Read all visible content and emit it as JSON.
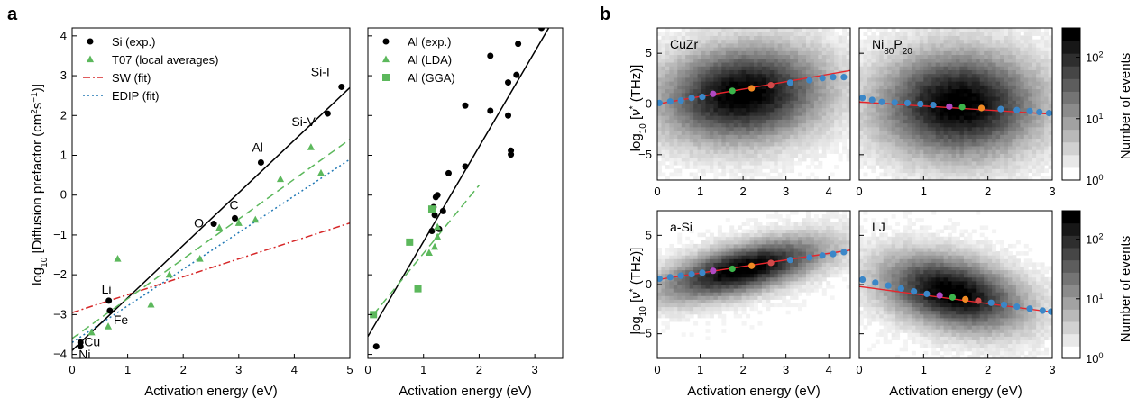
{
  "panel_letters": {
    "a": "a",
    "b": "b"
  },
  "chart_data": [
    {
      "type": "scatter",
      "panel": "a-left",
      "xlabel": "Activation energy (eV)",
      "ylabel": "log10 [Diffusion prefactor (cm2 s-1)]",
      "xlim": [
        0,
        5
      ],
      "ylim": [
        -4.1,
        4.2
      ],
      "xticks": [
        0,
        1,
        2,
        3,
        4,
        5
      ],
      "yticks": [
        -4,
        -3,
        -2,
        -1,
        0,
        1,
        2,
        3,
        4
      ],
      "legend_position": "top-left",
      "series": [
        {
          "name": "Si (exp.)",
          "kind": "points",
          "marker": "circle",
          "color": "#000000",
          "points": [
            {
              "x": 0.15,
              "y": -3.7,
              "label": "Cu"
            },
            {
              "x": 0.15,
              "y": -3.8,
              "label": "Ni"
            },
            {
              "x": 0.66,
              "y": -2.65,
              "label": "Li"
            },
            {
              "x": 0.68,
              "y": -2.9,
              "label": "Fe"
            },
            {
              "x": 2.55,
              "y": -0.72,
              "label": "O"
            },
            {
              "x": 2.93,
              "y": -0.58,
              "label": "C"
            },
            {
              "x": 3.4,
              "y": 0.82,
              "label": "Al"
            },
            {
              "x": 4.6,
              "y": 2.05,
              "label": "Si-V"
            },
            {
              "x": 4.85,
              "y": 2.72,
              "label": "Si-I"
            }
          ]
        },
        {
          "name": "T07 (local averages)",
          "kind": "points",
          "marker": "triangle",
          "color": "#5cb85c",
          "points": [
            {
              "x": 0.35,
              "y": -3.45
            },
            {
              "x": 0.65,
              "y": -3.3
            },
            {
              "x": 0.82,
              "y": -1.6
            },
            {
              "x": 1.42,
              "y": -2.75
            },
            {
              "x": 1.75,
              "y": -2.0
            },
            {
              "x": 2.3,
              "y": -1.6
            },
            {
              "x": 2.65,
              "y": -0.82
            },
            {
              "x": 3.0,
              "y": -0.7
            },
            {
              "x": 3.3,
              "y": -0.62
            },
            {
              "x": 3.75,
              "y": 0.4
            },
            {
              "x": 4.3,
              "y": 1.2
            },
            {
              "x": 4.48,
              "y": 0.55
            }
          ]
        },
        {
          "name": "SW (fit)",
          "kind": "line",
          "style": "dashdot",
          "color": "#d62728",
          "line": [
            [
              0,
              -2.95
            ],
            [
              5,
              -0.7
            ]
          ]
        },
        {
          "name": "EDIP (fit)",
          "kind": "line",
          "style": "dotted",
          "color": "#1f77b4",
          "line": [
            [
              0,
              -3.7
            ],
            [
              5,
              0.9
            ]
          ]
        },
        {
          "name": "",
          "kind": "line",
          "style": "solid",
          "color": "#000000",
          "line": [
            [
              0,
              -3.9
            ],
            [
              5,
              2.7
            ]
          ]
        },
        {
          "name": "",
          "kind": "line",
          "style": "dashed",
          "color": "#5cb85c",
          "line": [
            [
              0,
              -3.6
            ],
            [
              5,
              1.4
            ]
          ]
        }
      ]
    },
    {
      "type": "scatter",
      "panel": "a-right",
      "xlabel": "Activation energy (eV)",
      "xlim": [
        0,
        3.5
      ],
      "ylim": [
        -4.1,
        4.2
      ],
      "xticks": [
        0,
        1,
        2,
        3
      ],
      "yticks": [
        -4,
        -3,
        -2,
        -1,
        0,
        1,
        2,
        3,
        4
      ],
      "legend_position": "top-left",
      "series": [
        {
          "name": "Al (exp.)",
          "kind": "points",
          "marker": "circle",
          "color": "#000000",
          "points": [
            {
              "x": 0.15,
              "y": -3.8
            },
            {
              "x": 1.15,
              "y": -0.9
            },
            {
              "x": 1.18,
              "y": -0.3
            },
            {
              "x": 1.2,
              "y": -0.5
            },
            {
              "x": 1.22,
              "y": -0.05
            },
            {
              "x": 1.25,
              "y": 0.0
            },
            {
              "x": 1.28,
              "y": -0.85
            },
            {
              "x": 1.35,
              "y": -0.4
            },
            {
              "x": 1.45,
              "y": 0.55
            },
            {
              "x": 1.75,
              "y": 0.72
            },
            {
              "x": 1.75,
              "y": 2.25
            },
            {
              "x": 2.2,
              "y": 2.12
            },
            {
              "x": 2.2,
              "y": 3.5
            },
            {
              "x": 2.52,
              "y": 2.0
            },
            {
              "x": 2.52,
              "y": 2.83
            },
            {
              "x": 2.57,
              "y": 1.02
            },
            {
              "x": 2.57,
              "y": 1.12
            },
            {
              "x": 2.67,
              "y": 3.02
            },
            {
              "x": 2.7,
              "y": 3.8
            },
            {
              "x": 3.12,
              "y": 4.2
            }
          ]
        },
        {
          "name": "Al (LDA)",
          "kind": "points",
          "marker": "triangle",
          "color": "#5cb85c",
          "points": [
            {
              "x": 1.1,
              "y": -1.45
            },
            {
              "x": 1.2,
              "y": -1.3
            },
            {
              "x": 1.25,
              "y": -0.8
            },
            {
              "x": 1.25,
              "y": -1.05
            }
          ]
        },
        {
          "name": "Al (GGA)",
          "kind": "points",
          "marker": "square",
          "color": "#5cb85c",
          "points": [
            {
              "x": 0.1,
              "y": -3.0
            },
            {
              "x": 0.75,
              "y": -1.18
            },
            {
              "x": 0.9,
              "y": -2.35
            },
            {
              "x": 1.15,
              "y": -0.35
            }
          ]
        },
        {
          "name": "",
          "kind": "line",
          "style": "solid",
          "color": "#000000",
          "line": [
            [
              0,
              -3.55
            ],
            [
              3.25,
              4.2
            ]
          ]
        },
        {
          "name": "",
          "kind": "line",
          "style": "dashed",
          "color": "#5cb85c",
          "line": [
            [
              0.1,
              -3.0
            ],
            [
              2.0,
              0.25
            ]
          ]
        }
      ]
    },
    {
      "type": "heatmap",
      "panel": "b-CuZr",
      "title": "CuZr",
      "xlabel": "",
      "ylabel": "log10 [ν* (THz)]",
      "xlim": [
        0,
        4.5
      ],
      "ylim": [
        -7.5,
        7.5
      ],
      "xticks": [
        0,
        1,
        2,
        3,
        4
      ],
      "yticks": [
        -5,
        0,
        5
      ],
      "cloud": {
        "cx": 2.0,
        "cy": 1.0,
        "sx": 1.3,
        "sy": 3.2,
        "rho": 0.12
      },
      "fit_line": [
        [
          0,
          0.0
        ],
        [
          4.5,
          3.3
        ]
      ],
      "binned_points": [
        {
          "x": 0.05,
          "y": 0.1,
          "color": "#3b87c8"
        },
        {
          "x": 0.3,
          "y": 0.25,
          "color": "#3b87c8"
        },
        {
          "x": 0.55,
          "y": 0.35,
          "color": "#3b87c8"
        },
        {
          "x": 0.8,
          "y": 0.6,
          "color": "#3b87c8"
        },
        {
          "x": 1.05,
          "y": 0.7,
          "color": "#3b87c8"
        },
        {
          "x": 1.3,
          "y": 1.0,
          "color": "#b04ac4"
        },
        {
          "x": 1.75,
          "y": 1.3,
          "color": "#3cb44b"
        },
        {
          "x": 2.2,
          "y": 1.55,
          "color": "#f08a24"
        },
        {
          "x": 2.65,
          "y": 1.85,
          "color": "#d14a4a"
        },
        {
          "x": 3.1,
          "y": 2.1,
          "color": "#3b87c8"
        },
        {
          "x": 3.55,
          "y": 2.35,
          "color": "#3b87c8"
        },
        {
          "x": 3.85,
          "y": 2.55,
          "color": "#3b87c8"
        },
        {
          "x": 4.1,
          "y": 2.65,
          "color": "#3b87c8"
        },
        {
          "x": 4.35,
          "y": 2.65,
          "color": "#3b87c8"
        }
      ]
    },
    {
      "type": "heatmap",
      "panel": "b-NiP",
      "title": "Ni80P20",
      "xlim": [
        0,
        3
      ],
      "ylim": [
        -7.5,
        7.5
      ],
      "xticks": [
        0,
        1,
        2,
        3
      ],
      "yticks": [
        -5,
        0,
        5
      ],
      "cloud": {
        "cx": 1.55,
        "cy": 0.0,
        "sx": 0.85,
        "sy": 3.5,
        "rho": 0.0
      },
      "fit_line": [
        [
          0,
          0.2
        ],
        [
          3,
          -1.0
        ]
      ],
      "binned_points": [
        {
          "x": 0.05,
          "y": 0.6,
          "color": "#3b87c8"
        },
        {
          "x": 0.2,
          "y": 0.4,
          "color": "#3b87c8"
        },
        {
          "x": 0.35,
          "y": 0.2,
          "color": "#3b87c8"
        },
        {
          "x": 0.55,
          "y": 0.15,
          "color": "#3b87c8"
        },
        {
          "x": 0.75,
          "y": 0.1,
          "color": "#3b87c8"
        },
        {
          "x": 0.95,
          "y": 0.0,
          "color": "#3b87c8"
        },
        {
          "x": 1.15,
          "y": -0.1,
          "color": "#3b87c8"
        },
        {
          "x": 1.4,
          "y": -0.25,
          "color": "#b04ac4"
        },
        {
          "x": 1.6,
          "y": -0.3,
          "color": "#3cb44b"
        },
        {
          "x": 1.9,
          "y": -0.4,
          "color": "#f08a24"
        },
        {
          "x": 2.2,
          "y": -0.5,
          "color": "#3b87c8"
        },
        {
          "x": 2.45,
          "y": -0.6,
          "color": "#3b87c8"
        },
        {
          "x": 2.65,
          "y": -0.7,
          "color": "#3b87c8"
        },
        {
          "x": 2.8,
          "y": -0.8,
          "color": "#3b87c8"
        },
        {
          "x": 2.95,
          "y": -0.9,
          "color": "#3b87c8"
        }
      ]
    },
    {
      "type": "heatmap",
      "panel": "b-aSi",
      "title": "a-Si",
      "xlabel": "Activation energy (eV)",
      "ylabel": "log10 [ν* (THz)]",
      "xlim": [
        0,
        4.5
      ],
      "ylim": [
        -7.5,
        7.5
      ],
      "xticks": [
        0,
        1,
        2,
        3,
        4
      ],
      "yticks": [
        -5,
        0,
        5
      ],
      "cloud": {
        "cx": 2.0,
        "cy": 1.6,
        "sx": 1.3,
        "sy": 2.1,
        "rho": 0.6
      },
      "fit_line": [
        [
          0,
          0.5
        ],
        [
          4.5,
          3.5
        ]
      ],
      "binned_points": [
        {
          "x": 0.05,
          "y": 0.6,
          "color": "#3b87c8"
        },
        {
          "x": 0.3,
          "y": 0.75,
          "color": "#3b87c8"
        },
        {
          "x": 0.55,
          "y": 0.9,
          "color": "#3b87c8"
        },
        {
          "x": 0.8,
          "y": 1.05,
          "color": "#3b87c8"
        },
        {
          "x": 1.05,
          "y": 1.2,
          "color": "#3b87c8"
        },
        {
          "x": 1.3,
          "y": 1.4,
          "color": "#b04ac4"
        },
        {
          "x": 1.75,
          "y": 1.6,
          "color": "#3cb44b"
        },
        {
          "x": 2.2,
          "y": 1.9,
          "color": "#f08a24"
        },
        {
          "x": 2.65,
          "y": 2.2,
          "color": "#d14a4a"
        },
        {
          "x": 3.1,
          "y": 2.5,
          "color": "#3b87c8"
        },
        {
          "x": 3.55,
          "y": 2.75,
          "color": "#3b87c8"
        },
        {
          "x": 3.85,
          "y": 2.95,
          "color": "#3b87c8"
        },
        {
          "x": 4.1,
          "y": 3.1,
          "color": "#3b87c8"
        },
        {
          "x": 4.35,
          "y": 3.3,
          "color": "#3b87c8"
        }
      ]
    },
    {
      "type": "heatmap",
      "panel": "b-LJ",
      "title": "LJ",
      "xlabel": "Activation energy (eV)",
      "xlim": [
        0,
        3
      ],
      "ylim": [
        -7.5,
        7.5
      ],
      "xticks": [
        0,
        1,
        2,
        3
      ],
      "yticks": [
        -5,
        0,
        5
      ],
      "cloud": {
        "cx": 1.45,
        "cy": -0.8,
        "sx": 0.75,
        "sy": 2.6,
        "rho": -0.35
      },
      "fit_line": [
        [
          0,
          -0.2
        ],
        [
          3,
          -2.8
        ]
      ],
      "binned_points": [
        {
          "x": 0.05,
          "y": 0.5,
          "color": "#3b87c8"
        },
        {
          "x": 0.25,
          "y": 0.2,
          "color": "#3b87c8"
        },
        {
          "x": 0.45,
          "y": -0.1,
          "color": "#3b87c8"
        },
        {
          "x": 0.65,
          "y": -0.4,
          "color": "#3b87c8"
        },
        {
          "x": 0.85,
          "y": -0.7,
          "color": "#3b87c8"
        },
        {
          "x": 1.05,
          "y": -0.95,
          "color": "#3b87c8"
        },
        {
          "x": 1.25,
          "y": -1.1,
          "color": "#b04ac4"
        },
        {
          "x": 1.45,
          "y": -1.3,
          "color": "#3cb44b"
        },
        {
          "x": 1.65,
          "y": -1.5,
          "color": "#f08a24"
        },
        {
          "x": 1.85,
          "y": -1.65,
          "color": "#d14a4a"
        },
        {
          "x": 2.05,
          "y": -1.85,
          "color": "#3b87c8"
        },
        {
          "x": 2.25,
          "y": -2.05,
          "color": "#3b87c8"
        },
        {
          "x": 2.45,
          "y": -2.25,
          "color": "#3b87c8"
        },
        {
          "x": 2.65,
          "y": -2.45,
          "color": "#3b87c8"
        },
        {
          "x": 2.85,
          "y": -2.65,
          "color": "#3b87c8"
        },
        {
          "x": 2.98,
          "y": -2.75,
          "color": "#3b87c8"
        }
      ]
    }
  ],
  "colorbar": {
    "label": "Number of events",
    "scale": "log",
    "tick_labels": [
      "10",
      "10",
      "10"
    ],
    "tick_exponents": [
      "0",
      "1",
      "2"
    ],
    "ticks": [
      1,
      10,
      100
    ],
    "range": [
      1,
      300
    ]
  },
  "formatted_labels": {
    "a_ylabel": {
      "prefix": "log",
      "sub": "10",
      "mid": " [Diffusion prefactor (cm",
      "sup1": "2",
      "mid2": "s",
      "sup2": "−1",
      "suffix": ")]"
    },
    "b_ylabel": {
      "prefix": "log",
      "sub": "10",
      "mid": " [",
      "nu": "ν",
      "star": "*",
      "suffix": " (THz)]"
    },
    "nip_title": {
      "a": "Ni",
      "sub1": "80",
      "b": "P",
      "sub2": "20"
    }
  }
}
